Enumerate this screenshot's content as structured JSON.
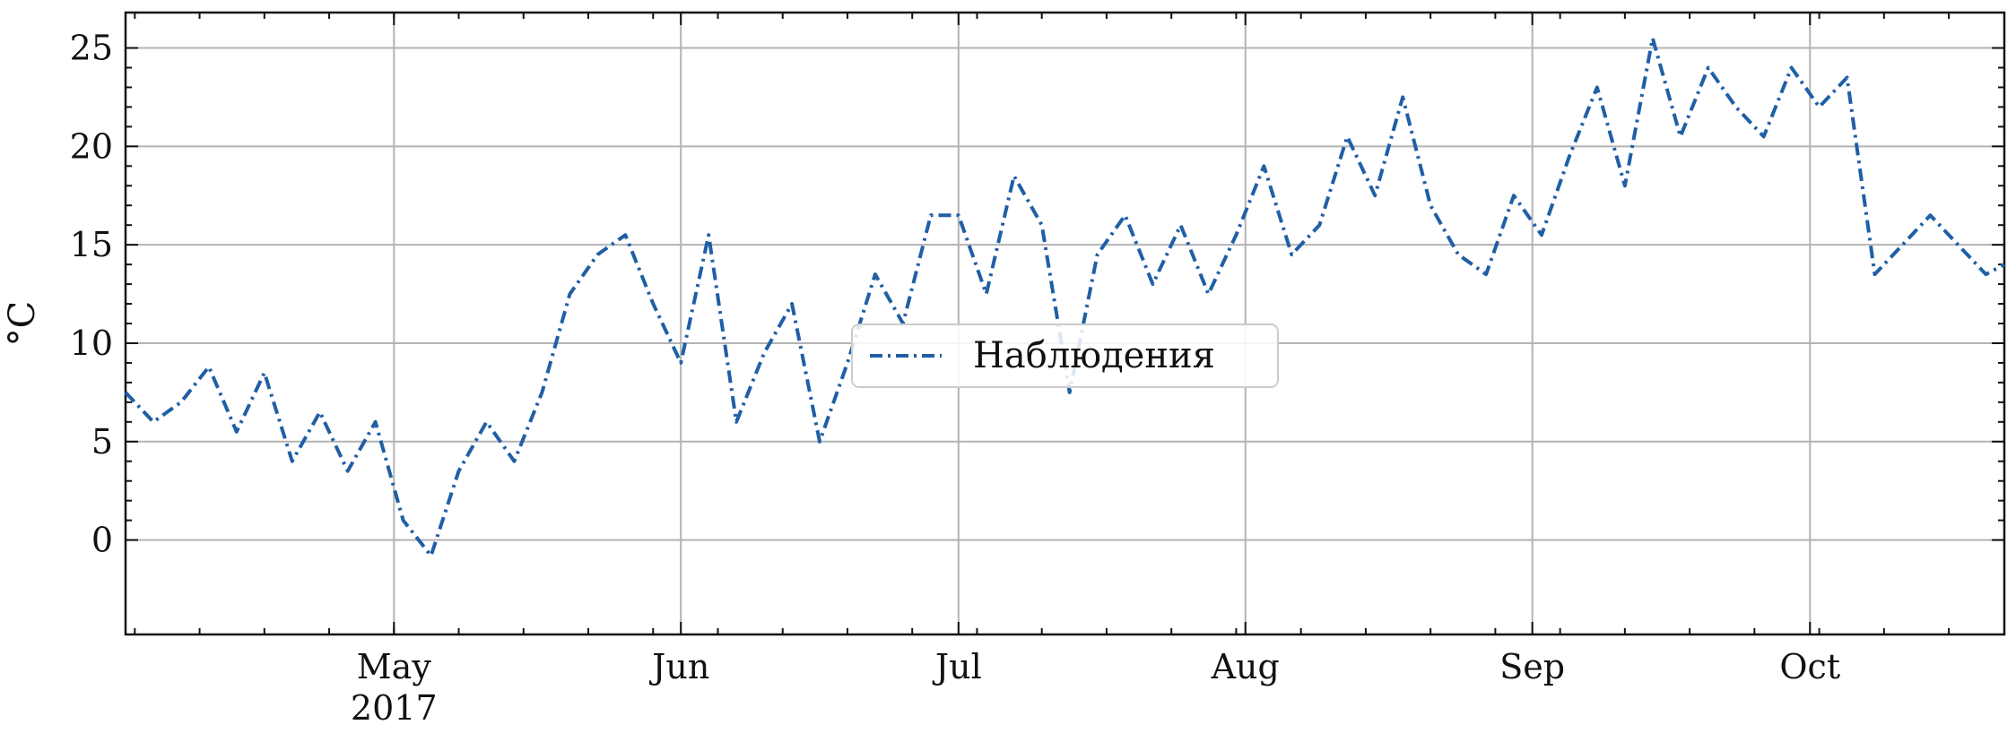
{
  "chart_data": {
    "type": "line",
    "ylabel": "°C",
    "ylim": [
      -4.8,
      26.8
    ],
    "xlim": [
      "2017-04-02",
      "2017-10-22"
    ],
    "yticks": [
      0,
      5,
      10,
      15,
      20,
      25
    ],
    "xticks": [
      {
        "date": "2017-05-01",
        "label": "May",
        "sublabel": "2017"
      },
      {
        "date": "2017-06-01",
        "label": "Jun",
        "sublabel": ""
      },
      {
        "date": "2017-07-01",
        "label": "Jul",
        "sublabel": ""
      },
      {
        "date": "2017-08-01",
        "label": "Aug",
        "sublabel": ""
      },
      {
        "date": "2017-09-01",
        "label": "Sep",
        "sublabel": ""
      },
      {
        "date": "2017-10-01",
        "label": "Oct",
        "sublabel": ""
      }
    ],
    "grid": true,
    "legend": {
      "placement": "lower-center"
    },
    "series": [
      {
        "name": "Наблюдения",
        "color": "#1f5fa6",
        "style": "dashdot",
        "points": [
          [
            "2017-04-02",
            7.5
          ],
          [
            "2017-04-05",
            6.0
          ],
          [
            "2017-04-08",
            7.0
          ],
          [
            "2017-04-11",
            8.8
          ],
          [
            "2017-04-14",
            5.5
          ],
          [
            "2017-04-17",
            8.5
          ],
          [
            "2017-04-20",
            4.0
          ],
          [
            "2017-04-23",
            6.5
          ],
          [
            "2017-04-26",
            3.5
          ],
          [
            "2017-04-29",
            6.0
          ],
          [
            "2017-05-02",
            1.0
          ],
          [
            "2017-05-05",
            -0.8
          ],
          [
            "2017-05-08",
            3.5
          ],
          [
            "2017-05-11",
            6.0
          ],
          [
            "2017-05-14",
            4.0
          ],
          [
            "2017-05-17",
            7.5
          ],
          [
            "2017-05-20",
            12.5
          ],
          [
            "2017-05-23",
            14.5
          ],
          [
            "2017-05-26",
            15.5
          ],
          [
            "2017-05-29",
            12.0
          ],
          [
            "2017-06-01",
            9.0
          ],
          [
            "2017-06-04",
            15.5
          ],
          [
            "2017-06-07",
            6.0
          ],
          [
            "2017-06-10",
            9.5
          ],
          [
            "2017-06-13",
            12.0
          ],
          [
            "2017-06-16",
            5.0
          ],
          [
            "2017-06-19",
            9.0
          ],
          [
            "2017-06-22",
            13.5
          ],
          [
            "2017-06-25",
            11.0
          ],
          [
            "2017-06-28",
            16.5
          ],
          [
            "2017-07-01",
            16.5
          ],
          [
            "2017-07-04",
            12.5
          ],
          [
            "2017-07-07",
            18.5
          ],
          [
            "2017-07-10",
            16.0
          ],
          [
            "2017-07-13",
            7.5
          ],
          [
            "2017-07-16",
            14.5
          ],
          [
            "2017-07-19",
            16.5
          ],
          [
            "2017-07-22",
            13.0
          ],
          [
            "2017-07-25",
            16.0
          ],
          [
            "2017-07-28",
            12.5
          ],
          [
            "2017-07-31",
            15.5
          ],
          [
            "2017-08-03",
            19.0
          ],
          [
            "2017-08-06",
            14.5
          ],
          [
            "2017-08-09",
            16.0
          ],
          [
            "2017-08-12",
            20.5
          ],
          [
            "2017-08-15",
            17.5
          ],
          [
            "2017-08-18",
            22.5
          ],
          [
            "2017-08-21",
            17.0
          ],
          [
            "2017-08-24",
            14.5
          ],
          [
            "2017-08-27",
            13.5
          ],
          [
            "2017-08-30",
            17.5
          ],
          [
            "2017-09-02",
            15.5
          ],
          [
            "2017-09-05",
            19.5
          ],
          [
            "2017-09-08",
            23.0
          ],
          [
            "2017-09-11",
            18.0
          ],
          [
            "2017-09-14",
            25.5
          ],
          [
            "2017-09-17",
            20.5
          ],
          [
            "2017-09-20",
            24.0
          ],
          [
            "2017-09-23",
            22.0
          ],
          [
            "2017-09-26",
            20.5
          ],
          [
            "2017-09-29",
            24.0
          ],
          [
            "2017-10-02",
            22.0
          ],
          [
            "2017-10-05",
            23.5
          ],
          [
            "2017-10-08",
            13.5
          ],
          [
            "2017-10-11",
            15.0
          ],
          [
            "2017-10-14",
            16.5
          ],
          [
            "2017-10-17",
            15.0
          ],
          [
            "2017-10-20",
            13.5
          ],
          [
            "2017-10-22",
            14.0
          ]
        ]
      }
    ]
  }
}
